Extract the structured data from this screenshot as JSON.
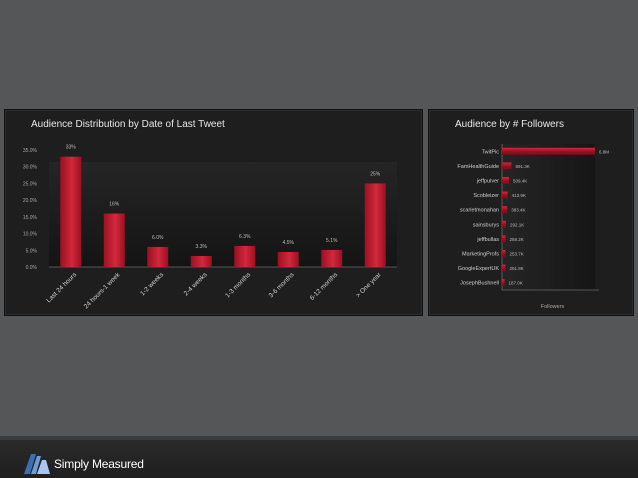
{
  "colors": {
    "bar": "#9b1022",
    "bar_light": "#d2283c",
    "page_bg": "#555657",
    "panel_bg": "#1e1e1f",
    "text": "#cfcfcf"
  },
  "brand": {
    "name": "Simply Measured",
    "icon": "simply-measured-logo-icon"
  },
  "chart_data": [
    {
      "type": "bar",
      "title": "Audience Distribution by Date of Last Tweet",
      "categories": [
        "Last 24 hours",
        "24 hours-1 week",
        "1-2 weeks",
        "2-4 weeks",
        "1-3 months",
        "3-6 months",
        "6-12 months",
        "> One year"
      ],
      "values": [
        33.0,
        16.0,
        6.0,
        3.3,
        6.3,
        4.5,
        5.1,
        25.0
      ],
      "value_labels": [
        "33%",
        "16%",
        "6.0%",
        "3.3%",
        "6.3%",
        "4.5%",
        "5.1%",
        "25%"
      ],
      "yticks": [
        "0.0%",
        "5.0%",
        "10.0%",
        "15.0%",
        "20.0%",
        "25.0%",
        "30.0%",
        "35.0%"
      ],
      "ylim": [
        0,
        35
      ],
      "xlabel": "",
      "ylabel": "",
      "grid": false
    },
    {
      "type": "bar",
      "orientation": "horizontal",
      "title": "Audience by # Followers",
      "categories": [
        "TwitPic",
        "FamHealthGuide",
        "jeffpulver",
        "Scobleizer",
        "scarletmonahan",
        "sainsburys",
        "jeffbullas",
        "MarketingProfs",
        "GoogleExpertUK",
        "JosephBushnell"
      ],
      "values": [
        6800,
        691.3,
        509.4,
        413.9,
        383.4,
        292.1,
        258.2,
        253.7,
        251.8,
        187.0
      ],
      "value_labels": [
        "6.8M",
        "691.3K",
        "509.4K",
        "413.9K",
        "383.4K",
        "292.1K",
        "258.2K",
        "253.7K",
        "251.8K",
        "187.0K"
      ],
      "xlabel": "Followers",
      "ylabel": "",
      "xlim": [
        0,
        6800
      ],
      "grid": false
    }
  ]
}
